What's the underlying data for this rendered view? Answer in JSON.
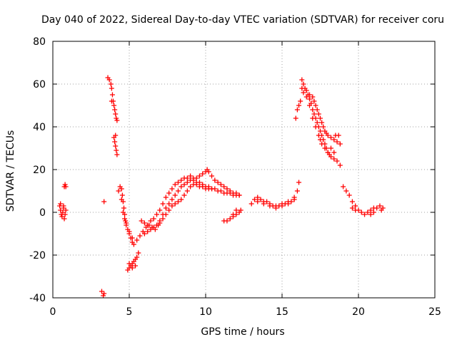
{
  "chart_data": {
    "type": "scatter",
    "title": "Day 040 of 2022, Sidereal Day-to-day VTEC variation (SDTVAR) for receiver coru",
    "xlabel": "GPS time / hours",
    "ylabel": "SDTVAR / TECUs",
    "xlim": [
      0,
      25
    ],
    "ylim": [
      -40,
      80
    ],
    "xticks": [
      0,
      5,
      10,
      15,
      20,
      25
    ],
    "yticks": [
      -40,
      -20,
      0,
      20,
      40,
      60,
      80
    ],
    "grid": true,
    "marker": "+",
    "color": "#ff0000",
    "segments": [
      {
        "name": "seg-a",
        "points": [
          [
            0.45,
            3
          ],
          [
            0.5,
            1
          ],
          [
            0.55,
            -1
          ],
          [
            0.6,
            -2
          ],
          [
            0.65,
            0
          ],
          [
            0.7,
            2
          ],
          [
            0.75,
            -3
          ],
          [
            0.8,
            -1
          ],
          [
            0.85,
            1
          ],
          [
            0.5,
            4
          ],
          [
            0.7,
            3
          ]
        ]
      },
      {
        "name": "seg-b",
        "points": [
          [
            0.75,
            12
          ],
          [
            0.8,
            13
          ],
          [
            0.85,
            12
          ]
        ]
      },
      {
        "name": "seg-c",
        "points": [
          [
            3.2,
            -37
          ],
          [
            3.3,
            -39
          ],
          [
            3.35,
            -38
          ]
        ]
      },
      {
        "name": "seg-d",
        "points": [
          [
            3.35,
            5
          ]
        ]
      },
      {
        "name": "seg-e",
        "points": [
          [
            3.6,
            63
          ],
          [
            3.7,
            62
          ],
          [
            3.8,
            60
          ],
          [
            3.85,
            58
          ],
          [
            3.9,
            55
          ],
          [
            3.95,
            52
          ],
          [
            4.0,
            50
          ],
          [
            4.05,
            48
          ],
          [
            4.1,
            46
          ],
          [
            4.15,
            44
          ],
          [
            4.2,
            43
          ],
          [
            3.85,
            52
          ]
        ]
      },
      {
        "name": "seg-f",
        "points": [
          [
            4.0,
            35
          ],
          [
            4.05,
            33
          ],
          [
            4.1,
            31
          ],
          [
            4.15,
            29
          ],
          [
            4.2,
            27
          ],
          [
            4.1,
            36
          ]
        ]
      },
      {
        "name": "seg-g",
        "points": [
          [
            4.3,
            10
          ],
          [
            4.4,
            12
          ],
          [
            4.5,
            11
          ],
          [
            4.55,
            8
          ],
          [
            4.6,
            5
          ],
          [
            4.65,
            2
          ],
          [
            4.7,
            -1
          ],
          [
            4.75,
            -4
          ],
          [
            4.8,
            -6
          ],
          [
            4.9,
            -8
          ],
          [
            5.0,
            -10
          ],
          [
            5.1,
            -12
          ],
          [
            5.2,
            -14
          ],
          [
            5.3,
            -15
          ],
          [
            4.5,
            6
          ],
          [
            4.6,
            0
          ],
          [
            4.7,
            -3
          ],
          [
            4.8,
            -5
          ],
          [
            5.0,
            -9
          ],
          [
            5.2,
            -12
          ]
        ]
      },
      {
        "name": "seg-h",
        "points": [
          [
            4.9,
            -27
          ],
          [
            5.0,
            -26
          ],
          [
            5.1,
            -25
          ],
          [
            5.2,
            -24
          ],
          [
            5.3,
            -23
          ],
          [
            5.4,
            -22
          ],
          [
            5.5,
            -21
          ],
          [
            5.6,
            -19
          ],
          [
            5.0,
            -24
          ],
          [
            5.2,
            -26
          ],
          [
            5.4,
            -25
          ]
        ]
      },
      {
        "name": "seg-i",
        "points": [
          [
            5.5,
            -13
          ],
          [
            5.7,
            -11
          ],
          [
            5.9,
            -9
          ],
          [
            6.1,
            -7
          ],
          [
            6.3,
            -6
          ],
          [
            6.5,
            -7
          ],
          [
            6.7,
            -8
          ],
          [
            6.9,
            -6
          ],
          [
            7.0,
            -4
          ],
          [
            7.2,
            -1
          ],
          [
            7.4,
            2
          ],
          [
            7.6,
            4
          ],
          [
            7.8,
            6
          ],
          [
            8.0,
            8
          ],
          [
            8.2,
            10
          ],
          [
            8.4,
            12
          ],
          [
            8.6,
            13
          ],
          [
            8.8,
            14
          ],
          [
            9.0,
            15
          ],
          [
            9.2,
            15
          ],
          [
            9.4,
            14
          ],
          [
            9.6,
            14
          ],
          [
            9.8,
            13
          ],
          [
            10.0,
            12
          ],
          [
            10.2,
            12
          ],
          [
            10.4,
            11
          ],
          [
            10.6,
            11
          ],
          [
            10.8,
            10
          ],
          [
            11.0,
            10
          ],
          [
            11.2,
            9
          ],
          [
            11.4,
            9
          ],
          [
            11.6,
            9
          ],
          [
            11.8,
            8
          ],
          [
            12.0,
            8
          ],
          [
            12.2,
            8
          ]
        ]
      },
      {
        "name": "seg-j",
        "points": [
          [
            5.8,
            -4
          ],
          [
            6.0,
            -5
          ],
          [
            6.2,
            -6
          ],
          [
            6.4,
            -4
          ],
          [
            6.6,
            -3
          ],
          [
            6.8,
            -1
          ],
          [
            7.0,
            1
          ],
          [
            7.2,
            4
          ],
          [
            7.4,
            7
          ],
          [
            7.6,
            9
          ],
          [
            7.8,
            11
          ],
          [
            8.0,
            13
          ],
          [
            8.2,
            14
          ],
          [
            8.4,
            15
          ],
          [
            8.6,
            16
          ],
          [
            8.8,
            16
          ],
          [
            9.0,
            17
          ],
          [
            9.2,
            16
          ],
          [
            9.4,
            16
          ],
          [
            9.6,
            17
          ],
          [
            9.8,
            18
          ],
          [
            10.0,
            19
          ],
          [
            10.1,
            20
          ],
          [
            10.2,
            19
          ],
          [
            10.4,
            17
          ],
          [
            10.6,
            15
          ],
          [
            10.8,
            14
          ],
          [
            11.0,
            13
          ],
          [
            11.2,
            12
          ],
          [
            11.4,
            11
          ],
          [
            11.6,
            10
          ],
          [
            11.8,
            9
          ],
          [
            12.0,
            9
          ],
          [
            12.2,
            8
          ]
        ]
      },
      {
        "name": "seg-k",
        "points": [
          [
            6.0,
            -10
          ],
          [
            6.2,
            -9
          ],
          [
            6.4,
            -8
          ],
          [
            6.6,
            -7
          ],
          [
            6.8,
            -6
          ],
          [
            7.0,
            -5
          ],
          [
            7.2,
            -3
          ],
          [
            7.4,
            -1
          ],
          [
            7.6,
            1
          ],
          [
            7.8,
            3
          ],
          [
            8.0,
            4
          ],
          [
            8.2,
            5
          ],
          [
            8.4,
            6
          ],
          [
            8.6,
            8
          ],
          [
            8.8,
            10
          ],
          [
            9.0,
            12
          ],
          [
            9.2,
            13
          ],
          [
            9.4,
            13
          ],
          [
            9.6,
            12
          ],
          [
            9.8,
            12
          ],
          [
            10.0,
            11
          ],
          [
            10.2,
            11
          ],
          [
            10.4,
            11
          ]
        ]
      },
      {
        "name": "seg-l",
        "points": [
          [
            11.2,
            -4
          ],
          [
            11.4,
            -4
          ],
          [
            11.6,
            -3
          ],
          [
            11.8,
            -2
          ],
          [
            12.0,
            -1
          ],
          [
            12.2,
            0
          ],
          [
            12.3,
            1
          ],
          [
            12.0,
            1
          ],
          [
            11.8,
            -1
          ]
        ]
      },
      {
        "name": "seg-m",
        "points": [
          [
            13.0,
            4
          ],
          [
            13.2,
            6
          ],
          [
            13.4,
            7
          ],
          [
            13.6,
            6
          ],
          [
            13.8,
            5
          ],
          [
            14.0,
            5
          ],
          [
            14.2,
            4
          ],
          [
            14.4,
            3
          ],
          [
            14.6,
            3
          ],
          [
            14.8,
            3
          ],
          [
            15.0,
            4
          ],
          [
            15.2,
            4
          ],
          [
            15.4,
            5
          ],
          [
            15.6,
            5
          ],
          [
            15.8,
            7
          ],
          [
            16.0,
            10
          ],
          [
            16.1,
            14
          ],
          [
            13.4,
            5
          ],
          [
            13.8,
            4
          ],
          [
            14.2,
            3
          ],
          [
            14.6,
            2
          ],
          [
            15.0,
            3
          ],
          [
            15.4,
            4
          ],
          [
            15.8,
            6
          ]
        ]
      },
      {
        "name": "seg-n",
        "points": [
          [
            15.9,
            44
          ],
          [
            16.0,
            48
          ],
          [
            16.1,
            50
          ],
          [
            16.2,
            52
          ],
          [
            16.3,
            58
          ],
          [
            16.3,
            62
          ],
          [
            16.4,
            60
          ],
          [
            16.5,
            58
          ],
          [
            16.6,
            57
          ],
          [
            16.7,
            55
          ],
          [
            16.8,
            53
          ],
          [
            16.9,
            51
          ],
          [
            17.0,
            48
          ],
          [
            17.1,
            46
          ],
          [
            17.2,
            44
          ],
          [
            17.3,
            42
          ],
          [
            17.4,
            40
          ],
          [
            17.5,
            38
          ],
          [
            17.6,
            36
          ],
          [
            17.7,
            34
          ],
          [
            17.8,
            32
          ],
          [
            17.9,
            30
          ],
          [
            18.0,
            28
          ],
          [
            18.1,
            27
          ]
        ]
      },
      {
        "name": "seg-o",
        "points": [
          [
            16.4,
            56
          ],
          [
            16.6,
            54
          ],
          [
            16.8,
            55
          ],
          [
            17.0,
            54
          ],
          [
            17.1,
            52
          ],
          [
            17.2,
            50
          ],
          [
            17.3,
            48
          ],
          [
            17.4,
            46
          ],
          [
            17.5,
            44
          ],
          [
            17.6,
            42
          ],
          [
            17.7,
            40
          ],
          [
            17.8,
            38
          ],
          [
            17.9,
            37
          ],
          [
            18.0,
            36
          ],
          [
            18.2,
            35
          ],
          [
            18.4,
            34
          ],
          [
            18.6,
            33
          ],
          [
            18.8,
            32
          ],
          [
            18.7,
            36
          ],
          [
            18.5,
            36
          ]
        ]
      },
      {
        "name": "seg-p",
        "points": [
          [
            16.8,
            50
          ],
          [
            17.0,
            44
          ],
          [
            17.2,
            40
          ],
          [
            17.4,
            36
          ],
          [
            17.6,
            32
          ],
          [
            17.8,
            30
          ],
          [
            18.0,
            28
          ],
          [
            18.2,
            26
          ],
          [
            18.4,
            25
          ],
          [
            18.6,
            24
          ],
          [
            18.8,
            22
          ],
          [
            18.4,
            28
          ],
          [
            18.2,
            30
          ],
          [
            17.5,
            34
          ]
        ]
      },
      {
        "name": "seg-q",
        "points": [
          [
            19.0,
            12
          ],
          [
            19.2,
            10
          ],
          [
            19.4,
            8
          ],
          [
            19.6,
            5
          ],
          [
            19.8,
            3
          ],
          [
            20.0,
            1
          ],
          [
            20.2,
            0
          ],
          [
            20.4,
            -1
          ],
          [
            20.6,
            0
          ],
          [
            20.8,
            1
          ],
          [
            21.0,
            2
          ],
          [
            21.2,
            2
          ],
          [
            21.4,
            3
          ],
          [
            21.6,
            2
          ],
          [
            21.5,
            1
          ],
          [
            21.0,
            0
          ],
          [
            20.8,
            -1
          ],
          [
            19.6,
            2
          ],
          [
            19.8,
            1
          ]
        ]
      }
    ]
  }
}
